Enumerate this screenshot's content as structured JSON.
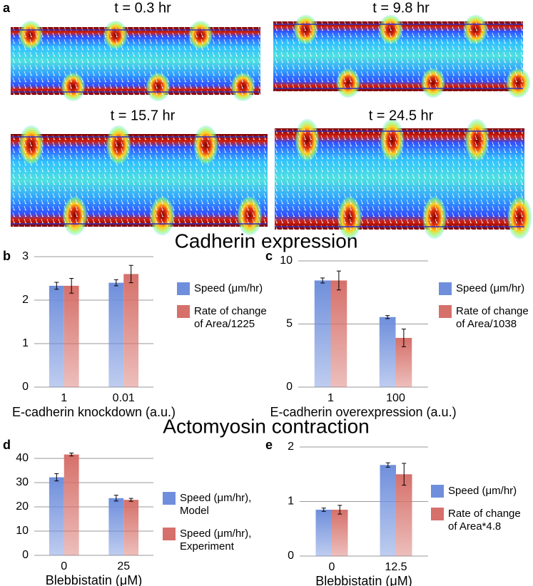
{
  "panel_a": {
    "label": "a",
    "frames": [
      "t = 0.3 hr",
      "t = 9.8 hr",
      "t = 15.7 hr",
      "t = 24.5 hr"
    ]
  },
  "sections": [
    "Cadherin expression",
    "Actomyosin contraction"
  ],
  "chart_data": [
    {
      "type": "bar",
      "panel": "b",
      "categories": [
        "1",
        "0.01"
      ],
      "x_label": "E-cadherin knockdown (a.u.)",
      "ylim": [
        0,
        3
      ],
      "yticks": [
        0,
        1,
        2,
        3
      ],
      "grid": true,
      "series": [
        {
          "name": "Speed (μm/hr)",
          "color": "#6f8fdc",
          "values": [
            2.33,
            2.4
          ],
          "errors": [
            0.08,
            0.07
          ]
        },
        {
          "name": "Rate of change of Area/1225",
          "color": "#d6706a",
          "values": [
            2.33,
            2.6
          ],
          "errors": [
            0.17,
            0.2
          ]
        }
      ]
    },
    {
      "type": "bar",
      "panel": "c",
      "categories": [
        "1",
        "100"
      ],
      "x_label": "E-cadherin overexpression (a.u.)",
      "ylim": [
        0,
        10
      ],
      "yticks": [
        0,
        5,
        10
      ],
      "grid": true,
      "series": [
        {
          "name": "Speed (μm/hr)",
          "color": "#6f8fdc",
          "values": [
            8.45,
            5.55
          ],
          "errors": [
            0.2,
            0.12
          ]
        },
        {
          "name": "Rate of change of Area/1038",
          "color": "#d6706a",
          "values": [
            8.45,
            3.9
          ],
          "errors": [
            0.75,
            0.7
          ]
        }
      ]
    },
    {
      "type": "bar",
      "panel": "d",
      "categories": [
        "0",
        "25"
      ],
      "x_label": "Blebbistatin (μM)",
      "ylim": [
        0,
        45
      ],
      "yticks": [
        0,
        10,
        20,
        30,
        40
      ],
      "grid": true,
      "series": [
        {
          "name": "Speed (μm/hr), Model",
          "color": "#6f8fdc",
          "values": [
            32.2,
            23.6
          ],
          "errors": [
            1.5,
            1.2
          ]
        },
        {
          "name": "Speed (μm/hr), Experiment",
          "color": "#d6706a",
          "values": [
            41.6,
            22.9
          ],
          "errors": [
            0.6,
            0.6
          ]
        }
      ]
    },
    {
      "type": "bar",
      "panel": "e",
      "categories": [
        "0",
        "12.5"
      ],
      "x_label": "Blebbistatin (μM)",
      "ylim": [
        0,
        2
      ],
      "yticks": [
        0,
        1,
        2
      ],
      "grid": true,
      "series": [
        {
          "name": "Speed (μm/hr)",
          "color": "#6f8fdc",
          "values": [
            0.85,
            1.67
          ],
          "errors": [
            0.03,
            0.04
          ]
        },
        {
          "name": "Rate of change of Area*4.8",
          "color": "#d6706a",
          "values": [
            0.85,
            1.5
          ],
          "errors": [
            0.08,
            0.2
          ]
        }
      ]
    }
  ]
}
